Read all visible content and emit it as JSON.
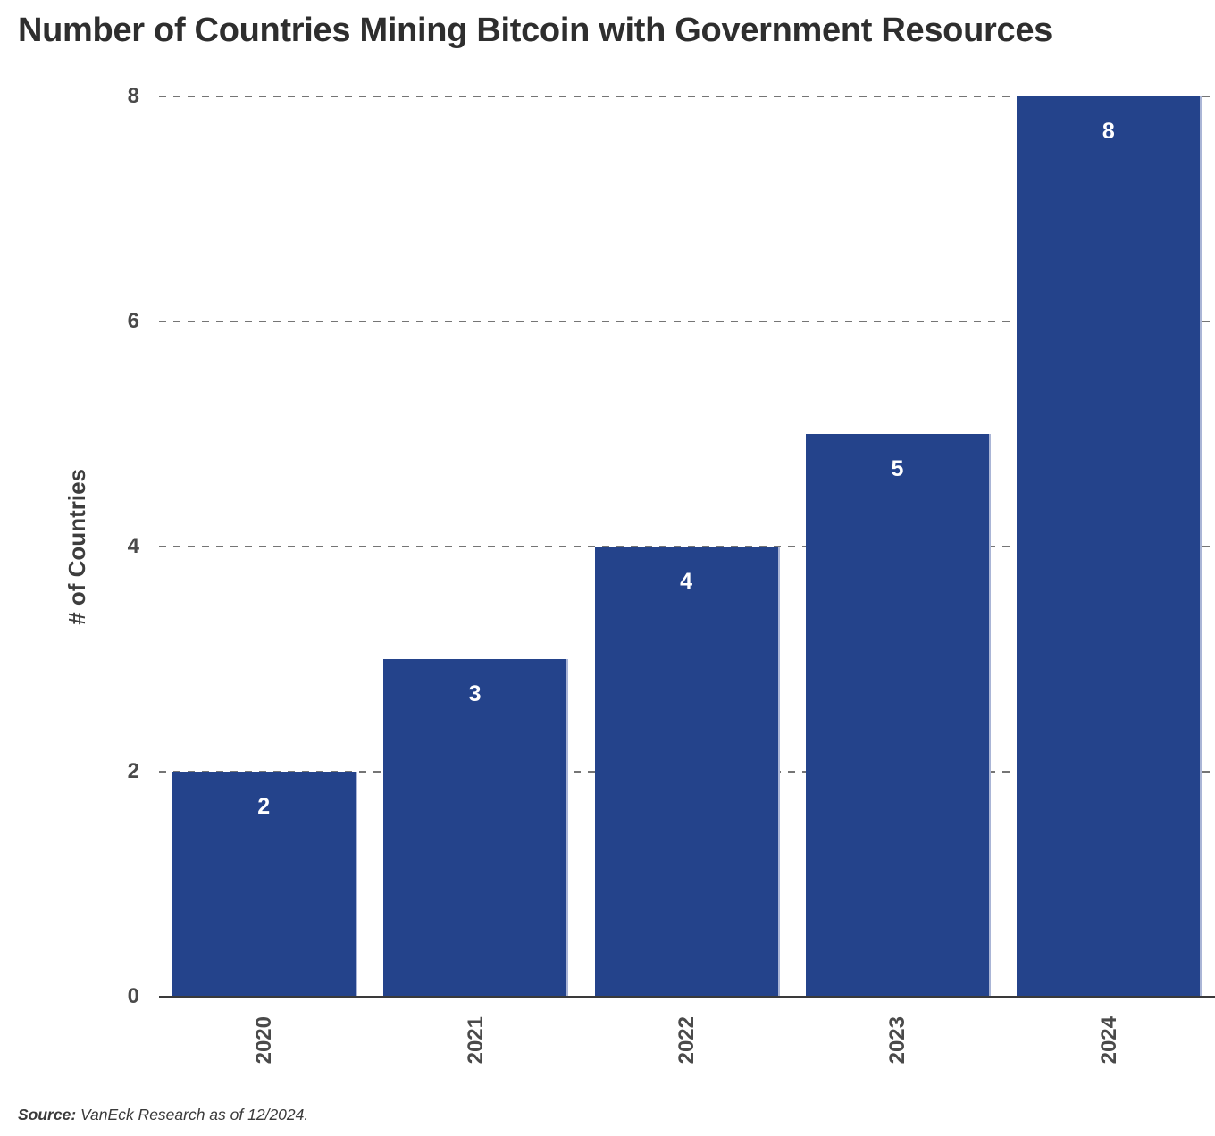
{
  "title": "Number of Countries Mining Bitcoin with Government Resources",
  "y_axis": {
    "label": "# of Countries"
  },
  "source": {
    "prefix": "Source:",
    "text": "VanEck Research as of 12/2024."
  },
  "chart_data": {
    "type": "bar",
    "categories": [
      "2020",
      "2021",
      "2022",
      "2023",
      "2024"
    ],
    "values": [
      2,
      3,
      4,
      5,
      8
    ],
    "data_labels": [
      "2",
      "3",
      "4",
      "5",
      "8"
    ],
    "title": "Number of Countries Mining Bitcoin with Government Resources",
    "xlabel": "",
    "ylabel": "# of Countries",
    "ylim": [
      0,
      8
    ],
    "yticks": [
      0,
      2,
      4,
      6,
      8
    ],
    "grid": "horizontal-dashed",
    "legend": "none",
    "colors": {
      "bar_fill": "#24438B",
      "bar_edge": "#AAB5D6",
      "data_label": "#FFFFFF",
      "gridline": "#757575",
      "axis_line": "#3A3A3A",
      "tick_label": "#4A4A4A",
      "title_text": "#2E2E2E"
    }
  }
}
